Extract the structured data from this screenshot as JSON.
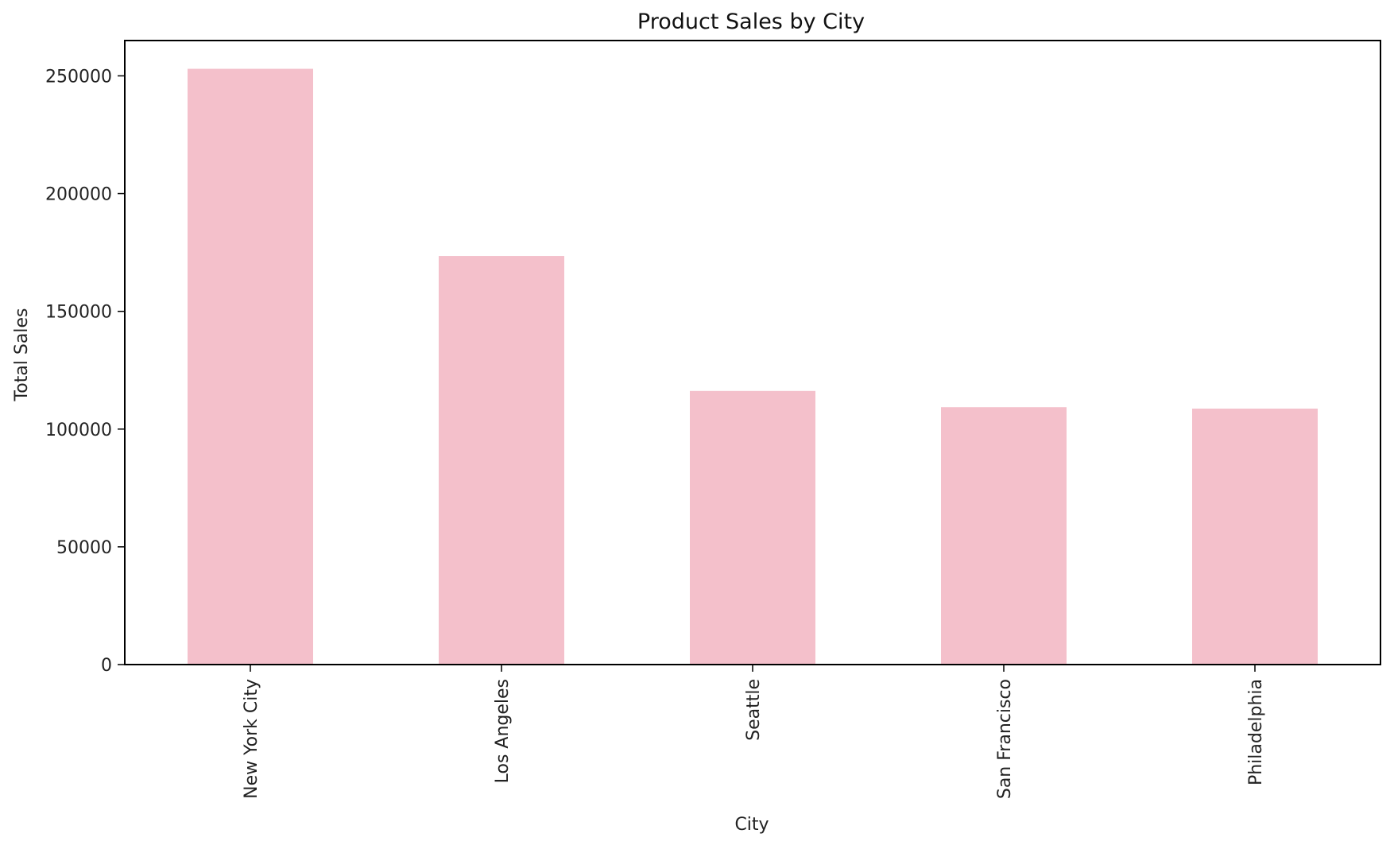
{
  "chart_data": {
    "type": "bar",
    "title": "Product Sales by City",
    "xlabel": "City",
    "ylabel": "Total Sales",
    "categories": [
      "New York City",
      "Los Angeles",
      "Seattle",
      "San Francisco",
      "Philadelphia"
    ],
    "values": [
      253000,
      173500,
      116200,
      109300,
      108700
    ],
    "ylim": [
      0,
      265000
    ],
    "yticks": [
      "0",
      "50000",
      "100000",
      "150000",
      "200000",
      "250000"
    ],
    "grid": false,
    "legend": "none",
    "bar_color": "#f4c0cb"
  }
}
